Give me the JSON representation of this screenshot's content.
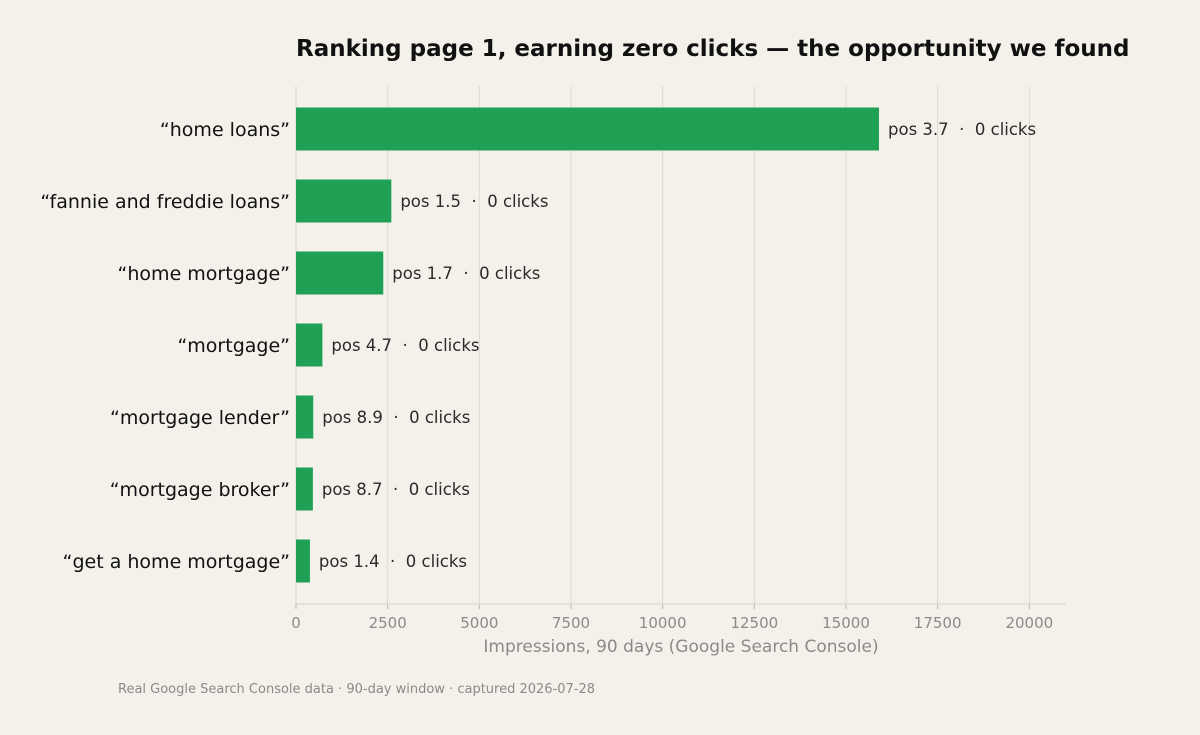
{
  "chart_data": {
    "type": "bar",
    "orientation": "horizontal",
    "title": "Ranking page 1, earning zero clicks — the opportunity we found",
    "xlabel": "Impressions, 90 days (Google Search Console)",
    "ylabel": "",
    "xlim": [
      0,
      21000
    ],
    "xticks": [
      0,
      2500,
      5000,
      7500,
      10000,
      12500,
      15000,
      17500,
      20000
    ],
    "grid": "vertical",
    "bar_color": "#1fa055",
    "categories": [
      "“home loans”",
      "“fannie and freddie loans”",
      "“home mortgage”",
      "“mortgage”",
      "“mortgage lender”",
      "“mortgage broker”",
      "“get a home mortgage”"
    ],
    "values": [
      15900,
      2600,
      2380,
      720,
      470,
      460,
      380
    ],
    "data_labels": [
      "pos 3.7  ·  0 clicks",
      "pos 1.5  ·  0 clicks",
      "pos 1.7  ·  0 clicks",
      "pos 4.7  ·  0 clicks",
      "pos 8.9  ·  0 clicks",
      "pos 8.7  ·  0 clicks",
      "pos 1.4  ·  0 clicks"
    ],
    "footnote": "Real Google Search Console data · 90-day window · captured 2026-07-28"
  }
}
